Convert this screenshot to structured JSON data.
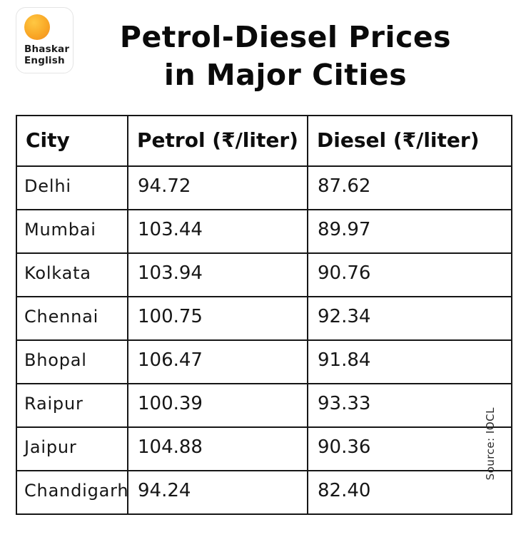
{
  "logo": {
    "line1": "Bhaskar",
    "line2": "English"
  },
  "title": {
    "line1": "Petrol-Diesel Prices",
    "line2": "in Major Cities"
  },
  "source": "Source: IOCL",
  "chart_data": {
    "type": "table",
    "title": "Petrol-Diesel Prices in Major Cities",
    "columns": [
      "City",
      "Petrol (₹/liter)",
      "Diesel (₹/liter)"
    ],
    "rows": [
      [
        "Delhi",
        "94.72",
        "87.62"
      ],
      [
        "Mumbai",
        "103.44",
        "89.97"
      ],
      [
        "Kolkata",
        "103.94",
        "90.76"
      ],
      [
        "Chennai",
        "100.75",
        "92.34"
      ],
      [
        "Bhopal",
        "106.47",
        "91.84"
      ],
      [
        "Raipur",
        "100.39",
        "93.33"
      ],
      [
        "Jaipur",
        "104.88",
        "90.36"
      ],
      [
        "Chandigarh",
        "94.24",
        "82.40"
      ]
    ],
    "source": "Source: IOCL"
  }
}
